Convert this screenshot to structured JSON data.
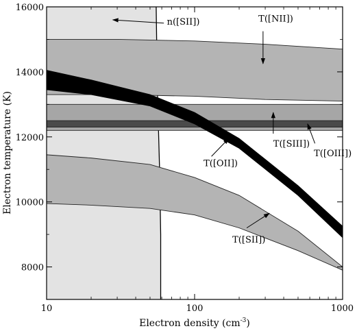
{
  "chart_data": {
    "type": "area",
    "xlabel": "Electron density (cm",
    "xlabel_sup": "-3",
    "xlabel_tail": ")",
    "ylabel": "Electron temperature (K)",
    "xscale": "log",
    "xlim": [
      10,
      1000
    ],
    "ylim": [
      7000,
      16000
    ],
    "grid": false,
    "x_ticks": [
      {
        "value": 10,
        "label": "10"
      },
      {
        "value": 100,
        "label": "100"
      },
      {
        "value": 1000,
        "label": "1000"
      }
    ],
    "y_ticks": [
      {
        "value": 8000,
        "label": "8000"
      },
      {
        "value": 10000,
        "label": "10000"
      },
      {
        "value": 12000,
        "label": "12000"
      },
      {
        "value": 14000,
        "label": "14000"
      },
      {
        "value": 16000,
        "label": "16000"
      }
    ],
    "regions": [
      {
        "label": "n([SII])",
        "color": "#e3e3e3",
        "x_range": [
          10,
          55
        ],
        "boundary_curve": [
          {
            "x": 55,
            "y": 16000
          },
          {
            "x": 56,
            "y": 13500
          },
          {
            "x": 58,
            "y": 11000
          },
          {
            "x": 59,
            "y": 9000
          },
          {
            "x": 59,
            "y": 7000
          }
        ]
      },
      {
        "label": "T([NII])",
        "color": "#b4b4b4",
        "x": [
          10,
          30,
          100,
          300,
          1000
        ],
        "upper": [
          15000,
          15000,
          14950,
          14850,
          14700
        ],
        "lower": [
          13300,
          13300,
          13250,
          13150,
          13100
        ]
      },
      {
        "label": "T([SIII])",
        "color": "#a6a6a6",
        "x": [
          10,
          1000
        ],
        "upper": [
          13000,
          13000
        ],
        "lower": [
          12200,
          12200
        ]
      },
      {
        "label": "T([OIII])",
        "color": "#4a4a4a",
        "x": [
          10,
          1000
        ],
        "upper": [
          12500,
          12500
        ],
        "lower": [
          12300,
          12300
        ]
      },
      {
        "label": "T([OII])",
        "color": "#000000",
        "x": [
          10,
          20,
          50,
          100,
          200,
          500,
          1000
        ],
        "upper": [
          14050,
          13750,
          13300,
          12750,
          11950,
          10500,
          9250
        ],
        "lower": [
          13450,
          13300,
          12950,
          12400,
          11650,
          10200,
          8900
        ]
      },
      {
        "label": "T([SII])",
        "color": "#b4b4b4",
        "x": [
          10,
          20,
          50,
          100,
          200,
          500,
          1000
        ],
        "upper": [
          11450,
          11350,
          11150,
          10750,
          10200,
          9100,
          8000
        ],
        "lower": [
          9950,
          9900,
          9800,
          9600,
          9200,
          8500,
          7900
        ]
      }
    ],
    "annotations": [
      {
        "id": "sii-n",
        "text": "n([SII])",
        "text_at": [
          65,
          15450
        ],
        "arrow_from": [
          62,
          15500
        ],
        "arrow_to": [
          28,
          15600
        ]
      },
      {
        "id": "nii",
        "text": "T([NII])",
        "text_at": [
          270,
          15550
        ],
        "arrow_from": [
          290,
          15250
        ],
        "arrow_to": [
          290,
          14250
        ]
      },
      {
        "id": "siii",
        "text": "T([SIII])",
        "text_at": [
          340,
          11700
        ],
        "arrow_from": [
          340,
          12100
        ],
        "arrow_to": [
          340,
          12750
        ]
      },
      {
        "id": "oiii",
        "text": "T([OIII])",
        "text_at": [
          640,
          11400
        ],
        "arrow_from": [
          650,
          11800
        ],
        "arrow_to": [
          580,
          12400
        ]
      },
      {
        "id": "oii",
        "text": "T([OII])",
        "text_at": [
          115,
          11100
        ],
        "arrow_from": [
          130,
          11400
        ],
        "arrow_to": [
          170,
          11950
        ]
      },
      {
        "id": "sii",
        "text": "T([SII])",
        "text_at": [
          180,
          8750
        ],
        "arrow_from": [
          225,
          9200
        ],
        "arrow_to": [
          320,
          9650
        ]
      }
    ]
  }
}
